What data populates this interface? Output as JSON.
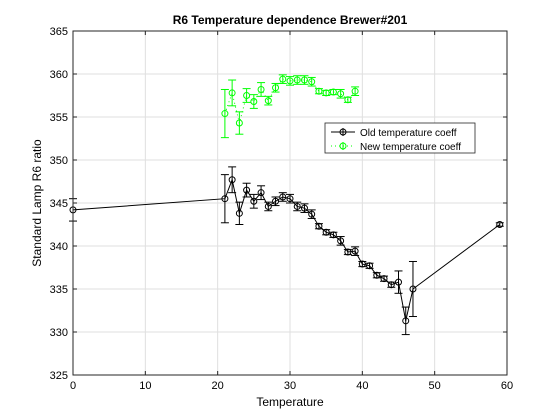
{
  "chart_data": {
    "type": "line",
    "title": "R6 Temperature dependence Brewer#201",
    "xlabel": "Temperature",
    "ylabel": "Standard Lamp R6 ratio",
    "xlim": [
      0,
      60
    ],
    "ylim": [
      325,
      365
    ],
    "xticks": [
      0,
      10,
      20,
      30,
      40,
      50,
      60
    ],
    "yticks": [
      325,
      330,
      335,
      340,
      345,
      350,
      355,
      360,
      365
    ],
    "grid": true,
    "legend_position": "upper-right",
    "series": [
      {
        "name": "Old temperature coeff",
        "color": "#000000",
        "line": "solid",
        "marker": "circle",
        "points": [
          {
            "x": 0,
            "y": 344.2,
            "err": 1.3
          },
          {
            "x": 21,
            "y": 345.5,
            "err": 2.8
          },
          {
            "x": 22,
            "y": 347.7,
            "err": 1.5
          },
          {
            "x": 23,
            "y": 343.8,
            "err": 1.3
          },
          {
            "x": 24,
            "y": 346.5,
            "err": 0.8
          },
          {
            "x": 25,
            "y": 345.2,
            "err": 0.8
          },
          {
            "x": 26,
            "y": 346.2,
            "err": 0.8
          },
          {
            "x": 27,
            "y": 344.6,
            "err": 0.5
          },
          {
            "x": 28,
            "y": 345.2,
            "err": 0.5
          },
          {
            "x": 29,
            "y": 345.7,
            "err": 0.5
          },
          {
            "x": 30,
            "y": 345.5,
            "err": 0.5
          },
          {
            "x": 31,
            "y": 344.6,
            "err": 0.5
          },
          {
            "x": 32,
            "y": 344.4,
            "err": 0.5
          },
          {
            "x": 33,
            "y": 343.7,
            "err": 0.5
          },
          {
            "x": 34,
            "y": 342.3,
            "err": 0.3
          },
          {
            "x": 35,
            "y": 341.6,
            "err": 0.3
          },
          {
            "x": 36,
            "y": 341.3,
            "err": 0.3
          },
          {
            "x": 37,
            "y": 340.6,
            "err": 0.5
          },
          {
            "x": 38,
            "y": 339.3,
            "err": 0.3
          },
          {
            "x": 39,
            "y": 339.4,
            "err": 0.5
          },
          {
            "x": 40,
            "y": 337.9,
            "err": 0.3
          },
          {
            "x": 41,
            "y": 337.7,
            "err": 0.3
          },
          {
            "x": 42,
            "y": 336.6,
            "err": 0.3
          },
          {
            "x": 43,
            "y": 336.2,
            "err": 0.3
          },
          {
            "x": 44,
            "y": 335.5,
            "err": 0.3
          },
          {
            "x": 45,
            "y": 335.8,
            "err": 1.3
          },
          {
            "x": 46,
            "y": 331.3,
            "err": 1.6
          },
          {
            "x": 47,
            "y": 335.0,
            "err": 3.2
          },
          {
            "x": 59,
            "y": 342.5,
            "err": 0.2
          }
        ]
      },
      {
        "name": "New temperature coeff",
        "color": "#00ff00",
        "line": "dotted",
        "marker": "circle",
        "points": [
          {
            "x": 21,
            "y": 355.4,
            "err": 2.8
          },
          {
            "x": 22,
            "y": 357.8,
            "err": 1.5
          },
          {
            "x": 23,
            "y": 354.3,
            "err": 1.3
          },
          {
            "x": 24,
            "y": 357.5,
            "err": 0.8
          },
          {
            "x": 25,
            "y": 356.8,
            "err": 0.8
          },
          {
            "x": 26,
            "y": 358.2,
            "err": 0.8
          },
          {
            "x": 27,
            "y": 356.9,
            "err": 0.5
          },
          {
            "x": 28,
            "y": 358.4,
            "err": 0.5
          },
          {
            "x": 29,
            "y": 359.4,
            "err": 0.5
          },
          {
            "x": 30,
            "y": 359.2,
            "err": 0.5
          },
          {
            "x": 31,
            "y": 359.3,
            "err": 0.5
          },
          {
            "x": 32,
            "y": 359.3,
            "err": 0.5
          },
          {
            "x": 33,
            "y": 359.1,
            "err": 0.5
          },
          {
            "x": 34,
            "y": 358.0,
            "err": 0.3
          },
          {
            "x": 35,
            "y": 357.8,
            "err": 0.3
          },
          {
            "x": 36,
            "y": 357.9,
            "err": 0.3
          },
          {
            "x": 37,
            "y": 357.7,
            "err": 0.5
          },
          {
            "x": 38,
            "y": 357.0,
            "err": 0.3
          },
          {
            "x": 39,
            "y": 358.0,
            "err": 0.5
          }
        ]
      }
    ]
  }
}
